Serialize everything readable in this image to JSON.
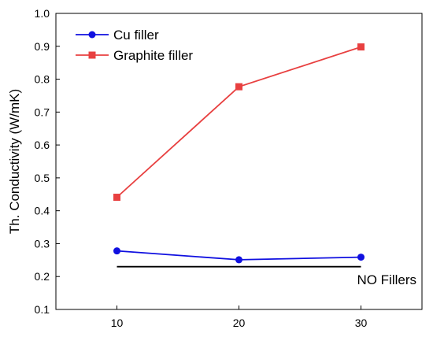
{
  "chart_data": {
    "type": "line",
    "x": [
      10,
      20,
      30
    ],
    "series": [
      {
        "name": "Cu filler",
        "values": [
          0.278,
          0.251,
          0.259
        ],
        "color": "#1010e0",
        "marker": "circle"
      },
      {
        "name": "Graphite filler",
        "values": [
          0.441,
          0.777,
          0.898
        ],
        "color": "#e84040",
        "marker": "square"
      }
    ],
    "reference_line": {
      "label": "NO Fillers",
      "value": 0.23,
      "x_range": [
        10,
        30
      ],
      "color": "#000000"
    },
    "xlabel": "",
    "ylabel": "Th. Conductivity (W/mK)",
    "xlim": [
      5,
      35
    ],
    "ylim": [
      0.1,
      1.0
    ],
    "xticks": [
      "10",
      "20",
      "30"
    ],
    "yticks": [
      "0.1",
      "0.2",
      "0.3",
      "0.4",
      "0.5",
      "0.6",
      "0.7",
      "0.8",
      "0.9",
      "1.0"
    ],
    "grid": false,
    "legend_position": "top-left"
  }
}
